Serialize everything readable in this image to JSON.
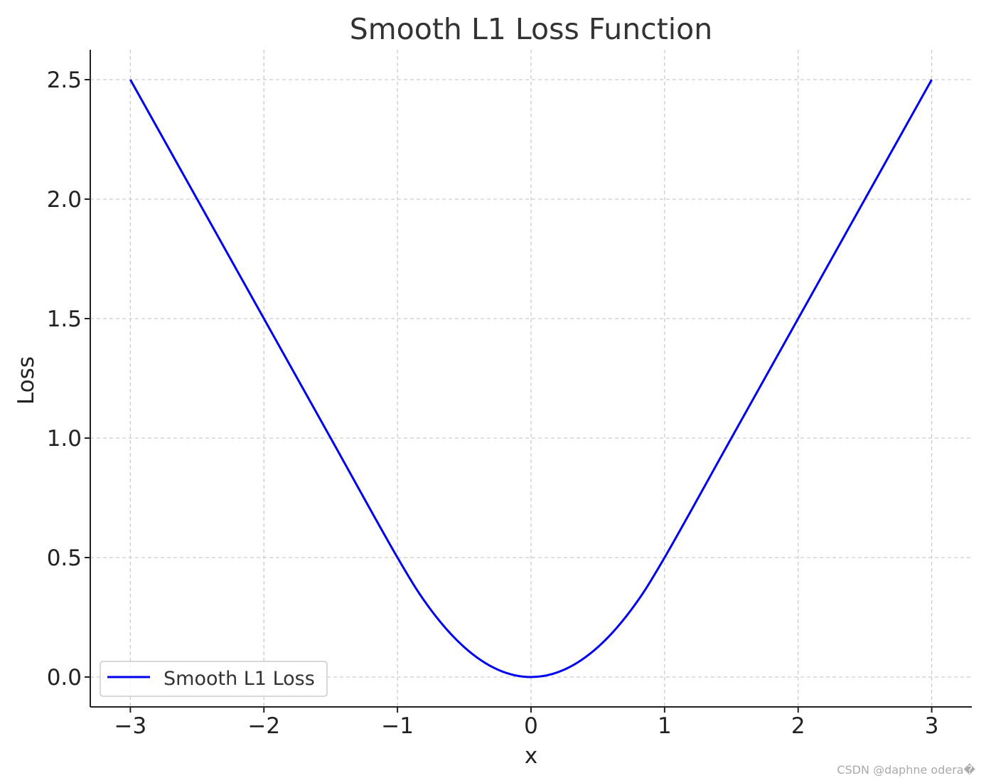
{
  "chart_data": {
    "type": "line",
    "title": "Smooth L1 Loss Function",
    "xlabel": "x",
    "ylabel": "Loss",
    "xlim": [
      -3.3,
      3.3
    ],
    "ylim": [
      -0.125,
      2.625
    ],
    "x_ticks": [
      -3,
      -2,
      -1,
      0,
      1,
      2,
      3
    ],
    "x_tick_labels": [
      "−3",
      "−2",
      "−1",
      "0",
      "1",
      "2",
      "3"
    ],
    "y_ticks": [
      0.0,
      0.5,
      1.0,
      1.5,
      2.0,
      2.5
    ],
    "y_tick_labels": [
      "0.0",
      "0.5",
      "1.0",
      "1.5",
      "2.0",
      "2.5"
    ],
    "grid": true,
    "legend_position": "lower-left",
    "series": [
      {
        "name": "Smooth L1 Loss",
        "color": "#0000ee",
        "x": [
          -3,
          -2.5,
          -2,
          -1.5,
          -1,
          -0.75,
          -0.5,
          -0.25,
          0,
          0.25,
          0.5,
          0.75,
          1,
          1.5,
          2,
          2.5,
          3
        ],
        "y": [
          2.5,
          2.0,
          1.5,
          1.0,
          0.5,
          0.28125,
          0.125,
          0.03125,
          0.0,
          0.03125,
          0.125,
          0.28125,
          0.5,
          1.0,
          1.5,
          2.0,
          2.5
        ]
      }
    ]
  },
  "watermark": "CSDN @daphne odera�"
}
